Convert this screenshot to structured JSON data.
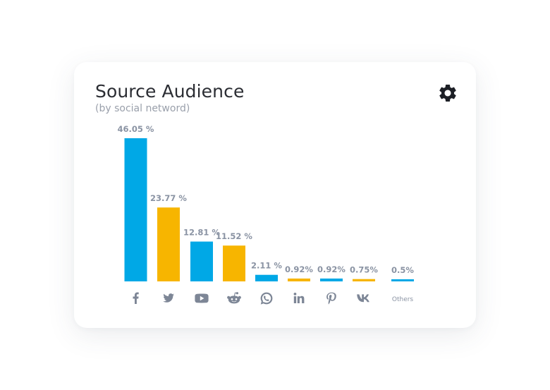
{
  "card": {
    "title": "Source Audience",
    "subtitle": "(by social netword)",
    "settings_icon": "gear-icon"
  },
  "colors": {
    "blue": "#00a8e6",
    "yellow": "#f7b500",
    "label": "#8a93a3",
    "icon": "#7d8696"
  },
  "chart_data": {
    "type": "bar",
    "title": "Source Audience",
    "subtitle": "(by social netword)",
    "categories": [
      "Facebook",
      "Twitter",
      "YouTube",
      "Reddit",
      "WhatsApp",
      "LinkedIn",
      "Pinterest",
      "VK",
      "Others"
    ],
    "category_icons": [
      "facebook-icon",
      "twitter-icon",
      "youtube-icon",
      "reddit-icon",
      "whatsapp-icon",
      "linkedin-icon",
      "pinterest-icon",
      "vk-icon",
      "others-text"
    ],
    "category_label_text": [
      "",
      "",
      "",
      "",
      "",
      "",
      "",
      "",
      "Others"
    ],
    "values": [
      46.05,
      23.77,
      12.81,
      11.52,
      2.11,
      0.92,
      0.92,
      0.75,
      0.5
    ],
    "value_labels": [
      "46.05 %",
      "23.77 %",
      "12.81 %",
      "11.52 %",
      "2.11 %",
      "0.92%",
      "0.92%",
      "0.75%",
      "0.5%"
    ],
    "bar_colors": [
      "#00a8e6",
      "#f7b500",
      "#00a8e6",
      "#f7b500",
      "#00a8e6",
      "#f7b500",
      "#00a8e6",
      "#f7b500",
      "#00a8e6"
    ],
    "ylim": [
      0,
      46.05
    ],
    "grid": false,
    "legend": "none",
    "xlabel": "",
    "ylabel": ""
  }
}
